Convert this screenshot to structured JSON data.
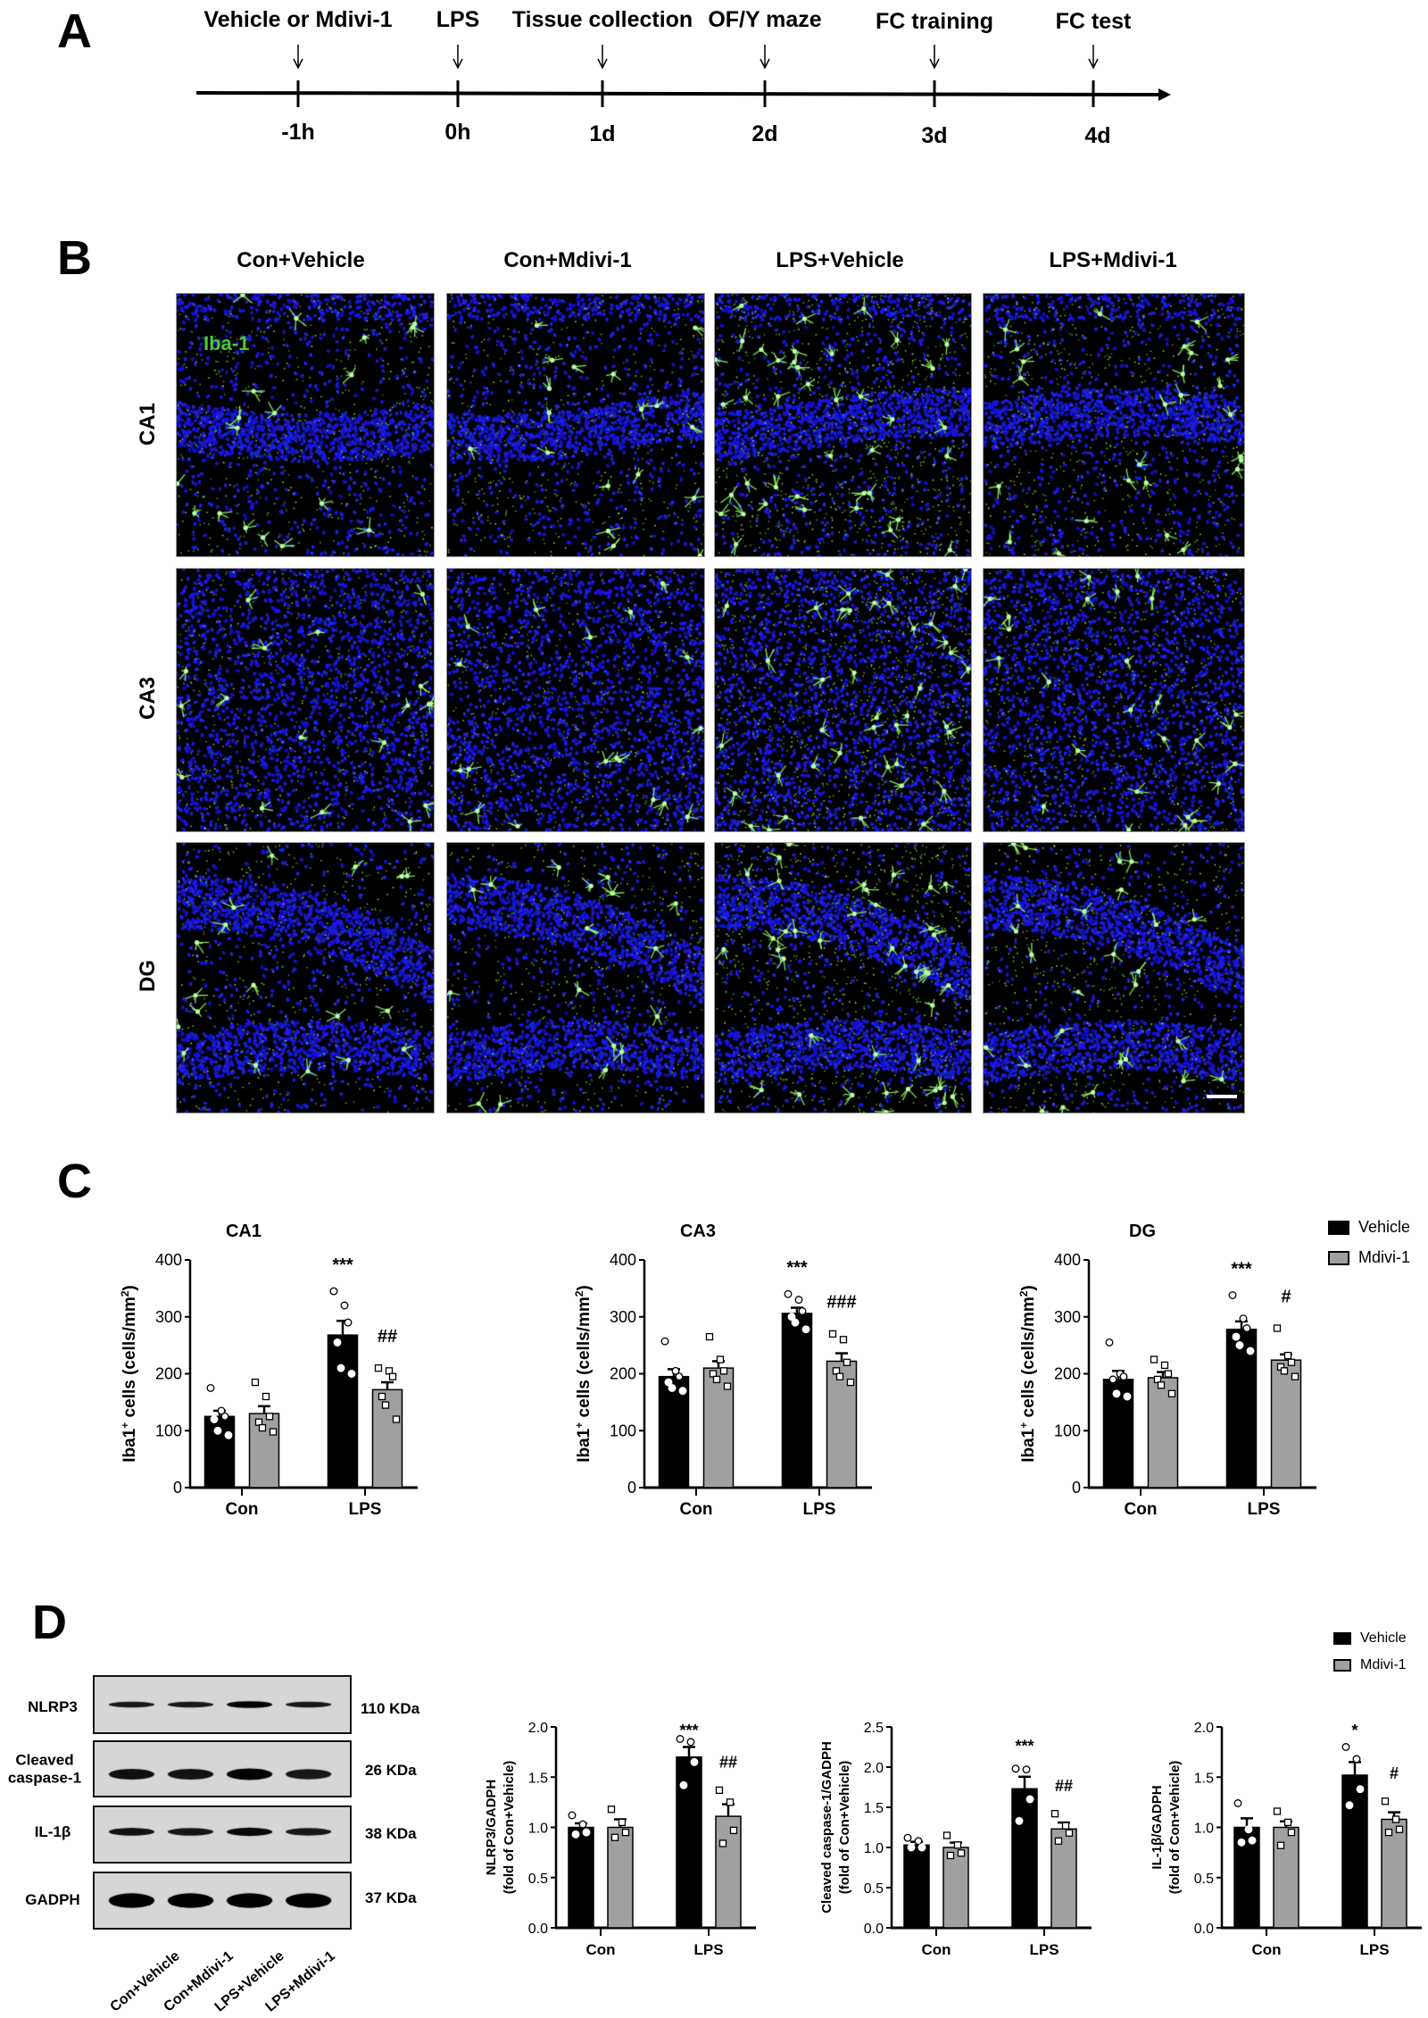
{
  "panel_labels": {
    "a": "A",
    "b": "B",
    "c": "C",
    "d": "D"
  },
  "timeline": {
    "events": [
      {
        "label": "Vehicle or Mdivi-1",
        "time": "-1h"
      },
      {
        "label": "LPS",
        "time": "0h"
      },
      {
        "label": "Tissue collection",
        "time": "1d"
      },
      {
        "label": "OF/Y maze",
        "time": "2d"
      },
      {
        "label": "FC training",
        "time": "3d"
      },
      {
        "label": "FC test",
        "time": "4d"
      }
    ]
  },
  "micrographs": {
    "columns": [
      "Con+Vehicle",
      "Con+Mdivi-1",
      "LPS+Vehicle",
      "LPS+Mdivi-1"
    ],
    "rows": [
      "CA1",
      "CA3",
      "DG"
    ],
    "stain_label": "Iba-1",
    "stain_color": "#46c83c",
    "nuclear_color": "#1c1cf0"
  },
  "legend": {
    "vehicle": "Vehicle",
    "mdivi": "Mdivi-1",
    "vehicle_color": "#000000",
    "mdivi_color": "#a0a0a0"
  },
  "western_blot": {
    "proteins": [
      {
        "name": "NLRP3",
        "size": "110 KDa"
      },
      {
        "name": "Cleaved caspase-1",
        "size": "26 KDa"
      },
      {
        "name": "IL-1β",
        "size": "38 KDa"
      },
      {
        "name": "GADPH",
        "size": "37 KDa"
      }
    ],
    "lanes": [
      "Con+Vehicle",
      "Con+Mdivi-1",
      "LPS+Vehicle",
      "LPS+Mdivi-1"
    ]
  },
  "chart_data": [
    {
      "type": "bar",
      "title": "CA1",
      "categories": [
        "Con",
        "LPS"
      ],
      "ylabel": {
        "a": "Iba1",
        "sup1": "+",
        "b": " cells (cells/mm",
        "sup2": "2",
        "c": ")"
      },
      "ylim": [
        0,
        400
      ],
      "yticks": [
        "0",
        "100",
        "200",
        "300",
        "400"
      ],
      "series": [
        {
          "name": "Vehicle",
          "values": [
            125,
            268
          ],
          "sem": [
            10,
            25
          ],
          "points": [
            [
              175,
              135,
              125,
              120,
              100,
              92
            ],
            [
              345,
              320,
              290,
              255,
              210,
              200
            ]
          ],
          "annotations": [
            "",
            "***"
          ]
        },
        {
          "name": "Mdivi-1",
          "values": [
            130,
            172
          ],
          "sem": [
            13,
            13
          ],
          "points": [
            [
              185,
              160,
              125,
              115,
              105,
              98
            ],
            [
              210,
              205,
              195,
              160,
              145,
              120
            ]
          ],
          "annotations": [
            "",
            "##"
          ]
        }
      ]
    },
    {
      "type": "bar",
      "title": "CA3",
      "categories": [
        "Con",
        "LPS"
      ],
      "ylabel": {
        "a": "Iba1",
        "sup1": "+",
        "b": " cells (cells/mm",
        "sup2": "2",
        "c": ")"
      },
      "ylim": [
        0,
        400
      ],
      "yticks": [
        "0",
        "100",
        "200",
        "300",
        "400"
      ],
      "series": [
        {
          "name": "Vehicle",
          "values": [
            195,
            306
          ],
          "sem": [
            13,
            10
          ],
          "points": [
            [
              257,
              205,
              195,
              185,
              175,
              170
            ],
            [
              340,
              330,
              310,
              300,
              290,
              278
            ]
          ],
          "annotations": [
            "",
            "***"
          ]
        },
        {
          "name": "Mdivi-1",
          "values": [
            210,
            222
          ],
          "sem": [
            12,
            14
          ],
          "points": [
            [
              265,
              225,
              205,
              200,
              190,
              178
            ],
            [
              270,
              260,
              220,
              205,
              195,
              185
            ]
          ],
          "annotations": [
            "",
            "###"
          ]
        }
      ]
    },
    {
      "type": "bar",
      "title": "DG",
      "categories": [
        "Con",
        "LPS"
      ],
      "ylabel": {
        "a": "Iba1",
        "sup1": "+",
        "b": " cells (cells/mm",
        "sup2": "2",
        "c": ")"
      },
      "ylim": [
        0,
        400
      ],
      "yticks": [
        "0",
        "100",
        "200",
        "300",
        "400"
      ],
      "series": [
        {
          "name": "Vehicle",
          "values": [
            190,
            278
          ],
          "sem": [
            15,
            14
          ],
          "points": [
            [
              255,
              200,
              195,
              190,
              165,
              160
            ],
            [
              338,
              297,
              280,
              265,
              250,
              240
            ]
          ],
          "annotations": [
            "",
            "***"
          ]
        },
        {
          "name": "Mdivi-1",
          "values": [
            193,
            224
          ],
          "sem": [
            10,
            10
          ],
          "points": [
            [
              225,
              215,
              200,
              190,
              180,
              165
            ],
            [
              280,
              232,
              220,
              212,
              205,
              195
            ]
          ],
          "annotations": [
            "",
            "#"
          ]
        }
      ]
    },
    {
      "type": "bar",
      "title": "",
      "categories": [
        "Con",
        "LPS"
      ],
      "ylabel": {
        "line1": "NLRP3/GADPH",
        "line2": "(fold of Con+Vehicle)"
      },
      "ylim": [
        0,
        2.0
      ],
      "yticks": [
        "0.0",
        "0.5",
        "1.0",
        "1.5",
        "2.0"
      ],
      "series": [
        {
          "name": "Vehicle",
          "values": [
            1.0,
            1.7
          ],
          "sem": [
            0.04,
            0.1
          ],
          "points": [
            [
              1.12,
              1.03,
              0.95,
              0.93
            ],
            [
              1.88,
              1.85,
              1.65,
              1.42
            ]
          ],
          "annotations": [
            "",
            "***"
          ]
        },
        {
          "name": "Mdivi-1",
          "values": [
            1.0,
            1.11
          ],
          "sem": [
            0.08,
            0.12
          ],
          "points": [
            [
              1.18,
              1.05,
              0.95,
              0.9
            ],
            [
              1.37,
              1.25,
              0.97,
              0.84
            ]
          ],
          "annotations": [
            "",
            "##"
          ]
        }
      ]
    },
    {
      "type": "bar",
      "title": "",
      "categories": [
        "Con",
        "LPS"
      ],
      "ylabel": {
        "line1": "Cleaved caspase-1/GADPH",
        "line2": "(fold of Con+Vehicle)"
      },
      "ylim": [
        0,
        2.5
      ],
      "yticks": [
        "0.0",
        "0.5",
        "1.0",
        "1.5",
        "2.0",
        "2.5"
      ],
      "series": [
        {
          "name": "Vehicle",
          "values": [
            1.03,
            1.73
          ],
          "sem": [
            0.04,
            0.15
          ],
          "points": [
            [
              1.12,
              1.08,
              1.0,
              1.0
            ],
            [
              1.98,
              1.97,
              1.6,
              1.33
            ]
          ],
          "annotations": [
            "",
            "***"
          ]
        },
        {
          "name": "Mdivi-1",
          "values": [
            1.0,
            1.23
          ],
          "sem": [
            0.06,
            0.08
          ],
          "points": [
            [
              1.15,
              1.03,
              0.93,
              0.9
            ],
            [
              1.42,
              1.27,
              1.18,
              1.08
            ]
          ],
          "annotations": [
            "",
            "##"
          ]
        }
      ]
    },
    {
      "type": "bar",
      "title": "",
      "categories": [
        "Con",
        "LPS"
      ],
      "ylabel": {
        "line1": "IL-1β/GADPH",
        "line2": "(fold of Con+Vehicle)"
      },
      "ylim": [
        0,
        2.0
      ],
      "yticks": [
        "0.0",
        "0.5",
        "1.0",
        "1.5",
        "2.0"
      ],
      "series": [
        {
          "name": "Vehicle",
          "values": [
            1.0,
            1.52
          ],
          "sem": [
            0.09,
            0.13
          ],
          "points": [
            [
              1.24,
              0.98,
              0.87,
              0.85
            ],
            [
              1.8,
              1.68,
              1.38,
              1.22
            ]
          ],
          "annotations": [
            "",
            "*"
          ]
        },
        {
          "name": "Mdivi-1",
          "values": [
            1.0,
            1.08
          ],
          "sem": [
            0.06,
            0.07
          ],
          "points": [
            [
              1.16,
              1.05,
              0.95,
              0.82
            ],
            [
              1.26,
              1.08,
              0.98,
              0.95
            ]
          ],
          "annotations": [
            "",
            "#"
          ]
        }
      ]
    }
  ]
}
